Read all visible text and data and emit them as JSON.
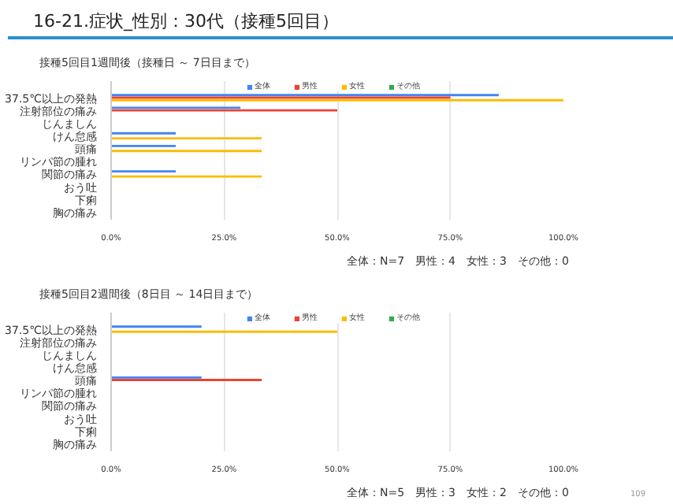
{
  "chart_data": [
    {
      "type": "bar",
      "orientation": "horizontal",
      "title": "16-21.症状_性別：30代（接種5回目）",
      "subtitle": "接種5回目1週間後（接種日 ～ 7日目まで）",
      "categories": [
        "37.5℃以上の発熱",
        "注射部位の痛み",
        "じんましん",
        "けん怠感",
        "頭痛",
        "リンパ節の腫れ",
        "関節の痛み",
        "おう吐",
        "下痢",
        "胸の痛み"
      ],
      "series": [
        {
          "name": "全体",
          "color": "#4285f4",
          "values": [
            85.7,
            28.6,
            0,
            14.3,
            14.3,
            0,
            14.3,
            0,
            0,
            0
          ]
        },
        {
          "name": "男性",
          "color": "#ea4335",
          "values": [
            75,
            50,
            0,
            0,
            0,
            0,
            0,
            0,
            0,
            0
          ]
        },
        {
          "name": "女性",
          "color": "#fbbc04",
          "values": [
            100,
            0,
            0,
            33.3,
            33.3,
            0,
            33.3,
            0,
            0,
            0
          ]
        },
        {
          "name": "その他",
          "color": "#34a853",
          "values": [
            0,
            0,
            0,
            0,
            0,
            0,
            0,
            0,
            0,
            0
          ]
        }
      ],
      "xlim": [
        0,
        100
      ],
      "xticks": [
        {
          "value": 0,
          "label": "0.0%"
        },
        {
          "value": 25,
          "label": "25.0%"
        },
        {
          "value": 50,
          "label": "50.0%"
        },
        {
          "value": 75,
          "label": "75.0%"
        },
        {
          "value": 100,
          "label": "100.0%"
        }
      ],
      "grid": "x",
      "legend": "top",
      "annotations": [
        "全体：N=7　男性：4　女性：3　その他：0"
      ]
    },
    {
      "type": "bar",
      "orientation": "horizontal",
      "title": "接種5回目2週間後（8日目 ～ 14日目まで）",
      "categories": [
        "37.5℃以上の発熱",
        "注射部位の痛み",
        "じんましん",
        "けん怠感",
        "頭痛",
        "リンパ節の腫れ",
        "関節の痛み",
        "おう吐",
        "下痢",
        "胸の痛み"
      ],
      "series": [
        {
          "name": "全体",
          "color": "#4285f4",
          "values": [
            20,
            0,
            0,
            0,
            20,
            0,
            0,
            0,
            0,
            0
          ]
        },
        {
          "name": "男性",
          "color": "#ea4335",
          "values": [
            0,
            0,
            0,
            0,
            33.3,
            0,
            0,
            0,
            0,
            0
          ]
        },
        {
          "name": "女性",
          "color": "#fbbc04",
          "values": [
            50,
            0,
            0,
            0,
            0,
            0,
            0,
            0,
            0,
            0
          ]
        },
        {
          "name": "その他",
          "color": "#34a853",
          "values": [
            0,
            0,
            0,
            0,
            0,
            0,
            0,
            0,
            0,
            0
          ]
        }
      ],
      "xlim": [
        0,
        100
      ],
      "xticks": [
        {
          "value": 0,
          "label": "0.0%"
        },
        {
          "value": 25,
          "label": "25.0%"
        },
        {
          "value": 50,
          "label": "50.0%"
        },
        {
          "value": 75,
          "label": "75.0%"
        },
        {
          "value": 100,
          "label": "100.0%"
        }
      ],
      "grid": "x",
      "legend": "top",
      "annotations": [
        "全体：N=5　男性：3　女性：2　その他：0",
        "109"
      ]
    }
  ]
}
